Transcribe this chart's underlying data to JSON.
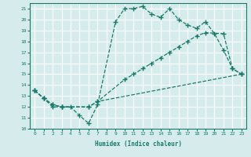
{
  "background_color": "#d6ecec",
  "grid_color": "#ffffff",
  "line_color": "#1a7a6a",
  "xlabel": "Humidex (Indice chaleur)",
  "xlim": [
    -0.5,
    23.5
  ],
  "ylim": [
    10,
    21.5
  ],
  "xticks": [
    0,
    1,
    2,
    3,
    4,
    5,
    6,
    7,
    8,
    9,
    10,
    11,
    12,
    13,
    14,
    15,
    16,
    17,
    18,
    19,
    20,
    21,
    22,
    23
  ],
  "yticks": [
    10,
    11,
    12,
    13,
    14,
    15,
    16,
    17,
    18,
    19,
    20,
    21
  ],
  "line1_x": [
    0,
    1,
    2,
    3,
    4,
    5,
    6,
    7,
    9,
    10,
    11,
    12,
    13,
    14,
    15,
    16,
    17,
    18,
    19,
    20,
    21,
    22,
    23
  ],
  "line1_y": [
    13.5,
    12.8,
    12.0,
    12.0,
    12.0,
    11.2,
    10.5,
    12.2,
    19.8,
    21.0,
    21.0,
    21.2,
    20.5,
    20.2,
    21.0,
    20.0,
    19.5,
    19.2,
    19.8,
    18.7,
    17.2,
    15.5,
    15.0
  ],
  "line2_x": [
    0,
    1,
    2,
    3,
    6,
    7,
    10,
    11,
    12,
    13,
    14,
    15,
    16,
    17,
    18,
    19,
    21,
    22,
    23
  ],
  "line2_y": [
    13.5,
    12.8,
    12.2,
    12.0,
    12.0,
    12.5,
    14.5,
    15.0,
    15.5,
    16.0,
    16.5,
    17.0,
    17.5,
    18.0,
    18.5,
    18.8,
    18.7,
    15.5,
    15.0
  ],
  "line3_x": [
    0,
    1,
    2,
    3,
    6,
    7,
    23
  ],
  "line3_y": [
    13.5,
    12.8,
    12.2,
    12.0,
    12.0,
    12.5,
    15.0
  ]
}
